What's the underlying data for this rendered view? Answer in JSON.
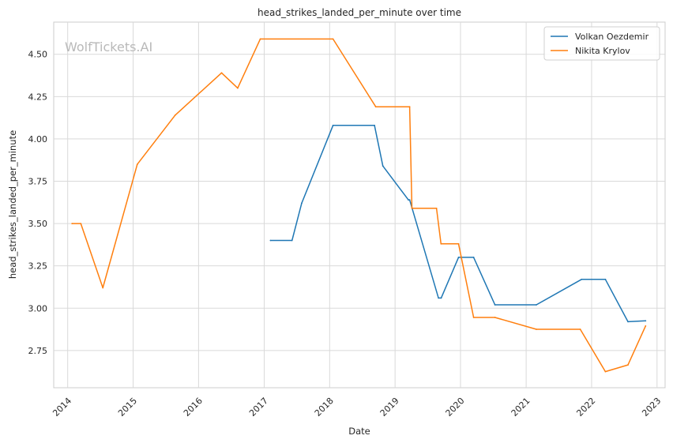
{
  "watermark": "WolfTickets.AI",
  "chart_data": {
    "type": "line",
    "title": "head_strikes_landed_per_minute over time",
    "xlabel": "Date",
    "ylabel": "head_strikes_landed_per_minute",
    "x_axis_type": "date",
    "xlim": [
      "2013-10-15",
      "2023-02-15"
    ],
    "ylim": [
      2.53,
      4.69
    ],
    "x_ticks": [
      "2014",
      "2015",
      "2016",
      "2017",
      "2018",
      "2019",
      "2020",
      "2021",
      "2022",
      "2023"
    ],
    "y_ticks": [
      "2.75",
      "3.00",
      "3.25",
      "3.50",
      "3.75",
      "4.00",
      "4.25",
      "4.50"
    ],
    "grid": true,
    "legend_position": "top-right",
    "series": [
      {
        "name": "Volkan Oezdemir",
        "color": "#1f77b4",
        "points": [
          [
            "2017-02-05",
            3.4
          ],
          [
            "2017-06-05",
            3.4
          ],
          [
            "2017-07-29",
            3.62
          ],
          [
            "2018-01-20",
            4.08
          ],
          [
            "2018-09-08",
            4.08
          ],
          [
            "2018-10-25",
            3.84
          ],
          [
            "2019-03-16",
            3.64
          ],
          [
            "2019-03-23",
            3.64
          ],
          [
            "2019-08-31",
            3.06
          ],
          [
            "2019-09-15",
            3.06
          ],
          [
            "2019-12-21",
            3.3
          ],
          [
            "2020-03-14",
            3.3
          ],
          [
            "2020-07-11",
            3.02
          ],
          [
            "2021-02-27",
            3.02
          ],
          [
            "2021-11-06",
            3.17
          ],
          [
            "2022-03-19",
            3.17
          ],
          [
            "2022-07-23",
            2.92
          ],
          [
            "2022-10-29",
            2.925
          ]
        ]
      },
      {
        "name": "Nikita Krylov",
        "color": "#ff7f0e",
        "points": [
          [
            "2014-01-25",
            3.5
          ],
          [
            "2014-03-15",
            3.5
          ],
          [
            "2014-07-16",
            3.12
          ],
          [
            "2015-01-24",
            3.85
          ],
          [
            "2015-08-23",
            4.14
          ],
          [
            "2016-05-08",
            4.39
          ],
          [
            "2016-08-06",
            4.3
          ],
          [
            "2016-12-10",
            4.59
          ],
          [
            "2018-01-20",
            4.59
          ],
          [
            "2018-09-15",
            4.19
          ],
          [
            "2019-03-23",
            4.19
          ],
          [
            "2019-04-05",
            3.59
          ],
          [
            "2019-08-20",
            3.59
          ],
          [
            "2019-09-14",
            3.38
          ],
          [
            "2019-12-21",
            3.38
          ],
          [
            "2020-03-14",
            2.945
          ],
          [
            "2020-07-11",
            2.945
          ],
          [
            "2021-02-27",
            2.875
          ],
          [
            "2021-10-30",
            2.875
          ],
          [
            "2022-03-19",
            2.625
          ],
          [
            "2022-07-23",
            2.665
          ],
          [
            "2022-10-29",
            2.895
          ]
        ]
      }
    ]
  }
}
